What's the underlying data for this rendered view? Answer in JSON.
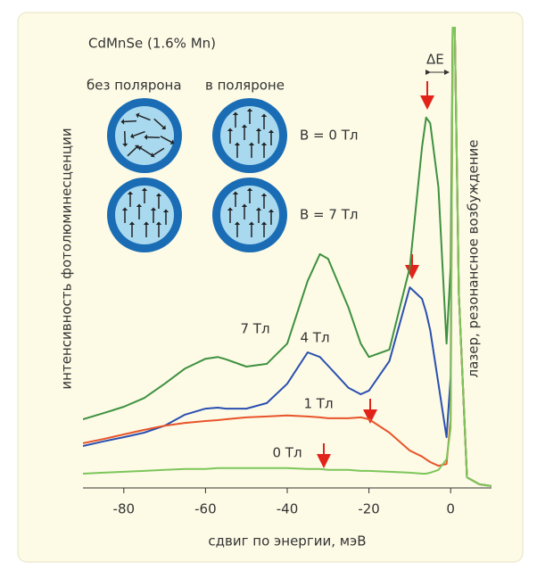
{
  "chart_data": {
    "type": "line",
    "title": "CdMnSe (1.6% Mn)",
    "x_label": "сдвиг по энергии, мэВ",
    "y_label": "интенсивность фотолюминесценции",
    "annotations": [
      "без полярона",
      "в поляроне",
      "B = 0 Тл",
      "B = 7 Тл",
      "ΔE",
      "лазер, резонансное возбуждение"
    ],
    "x": [
      -90,
      -85,
      -80,
      -75,
      -70,
      -65,
      -60,
      -57,
      -55,
      -50,
      -45,
      -40,
      -35,
      -32,
      -30,
      -25,
      -22,
      -20,
      -15,
      -10,
      -7,
      -6,
      -5,
      -3,
      -1,
      0,
      0.5,
      1,
      2,
      4,
      7,
      10
    ],
    "series": [
      {
        "name": "7 Тл",
        "color": "#3e9140",
        "values": [
          14.9,
          16.2,
          17.6,
          19.5,
          22.6,
          25.9,
          28.0,
          28.4,
          27.9,
          26.3,
          26.9,
          31.3,
          44.9,
          50.7,
          49.7,
          39.1,
          31.3,
          28.4,
          30.0,
          47.8,
          73.9,
          80.3,
          79.1,
          65.2,
          31.3,
          47.8,
          100,
          100,
          42,
          2.3,
          0.8,
          0.4
        ]
      },
      {
        "name": "4 Тл",
        "color": "#2a4fb0",
        "values": [
          9.1,
          10.1,
          11.0,
          12.0,
          13.5,
          15.9,
          17.2,
          17.4,
          17.2,
          17.2,
          18.4,
          22.6,
          29.4,
          28.4,
          26.5,
          21.7,
          20.3,
          21.1,
          27.5,
          43.5,
          41.0,
          38.1,
          34.2,
          22.6,
          11.0,
          24.0,
          100,
          100,
          42,
          2.3,
          0.8,
          0.4
        ]
      },
      {
        "name": "1 Тл",
        "color": "#e8542a",
        "values": [
          9.7,
          10.6,
          11.6,
          12.6,
          13.5,
          14.1,
          14.5,
          14.7,
          14.9,
          15.3,
          15.5,
          15.7,
          15.5,
          15.3,
          15.1,
          15.1,
          15.3,
          14.9,
          12.0,
          8.1,
          6.8,
          6.2,
          5.6,
          4.8,
          5.2,
          14.9,
          100,
          100,
          42,
          2.3,
          0.8,
          0.4
        ]
      },
      {
        "name": "0 Тл",
        "color": "#7dc65a",
        "values": [
          3.1,
          3.3,
          3.5,
          3.7,
          3.9,
          4.1,
          4.1,
          4.3,
          4.3,
          4.3,
          4.3,
          4.3,
          4.1,
          4.1,
          3.9,
          3.9,
          3.7,
          3.7,
          3.5,
          3.3,
          3.1,
          3.1,
          3.3,
          3.9,
          6.2,
          13.0,
          100,
          100,
          42,
          2.3,
          0.8,
          0.4
        ]
      }
    ],
    "xlim": [
      -90,
      10
    ],
    "ylim": [
      0,
      100
    ],
    "xticks": [
      -80,
      -60,
      -40,
      -20,
      0
    ]
  }
}
